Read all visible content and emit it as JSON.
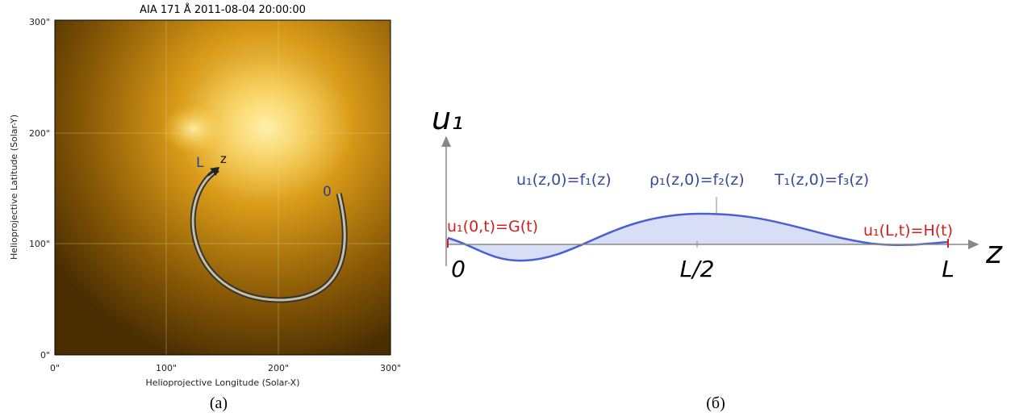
{
  "panel_a": {
    "title": "AIA 171 Å 2011-08-04 20:00:00",
    "xticks": [
      "0\"",
      "100\"",
      "200\"",
      "300\""
    ],
    "yticks": [
      "300\"",
      "200\"",
      "100\"",
      "0\""
    ],
    "xlabel": "Helioprojective Longitude (Solar-X)",
    "ylabel": "Helioprojective Latitude (Solar-Y)",
    "loop_labels": {
      "start": "L",
      "direction": "z",
      "end": "0"
    },
    "caption": "(a)"
  },
  "panel_b": {
    "axis_y": "u₁",
    "axis_x": "z",
    "boundary_left": "u₁(0,t)=G(t)",
    "boundary_right": "u₁(L,t)=H(t)",
    "initial": [
      "u₁(z,0)=f₁(z)",
      "ρ₁(z,0)=f₂(z)",
      "T₁(z,0)=f₃(z)"
    ],
    "x_marks": [
      "0",
      "L/2",
      "L"
    ],
    "caption": "(б)"
  }
}
